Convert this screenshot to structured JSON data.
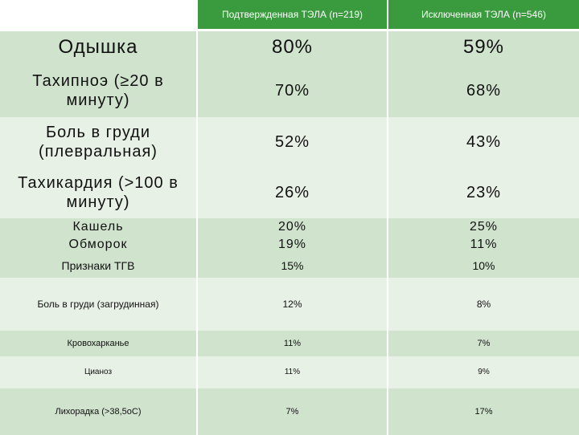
{
  "header": {
    "col1": "",
    "col2": "Подтвержденная ТЭЛА (n=219)",
    "col3": "Исключенная ТЭЛА (n=546)"
  },
  "rows": [
    {
      "label": "Одышка",
      "confirmed": "80%",
      "excluded": "59%"
    },
    {
      "label": "Тахипноэ (≥20 в минуту)",
      "confirmed": "70%",
      "excluded": "68%"
    },
    {
      "label": "Боль в груди (плевральная)",
      "confirmed": "52%",
      "excluded": "43%"
    },
    {
      "label": "Тахикардия (>100 в минуту)",
      "confirmed": "26%",
      "excluded": "23%"
    },
    {
      "label": "Кашель",
      "confirmed": "20%",
      "excluded": "25%"
    },
    {
      "label": "Обморок",
      "confirmed": "19%",
      "excluded": "11%"
    },
    {
      "label": "Признаки ТГВ",
      "confirmed": "15%",
      "excluded": "10%"
    },
    {
      "label": "Боль в груди (загрудинная)",
      "confirmed": "12%",
      "excluded": "8%"
    },
    {
      "label": "Кровохарканье",
      "confirmed": "11%",
      "excluded": "7%"
    },
    {
      "label": "Цианоз",
      "confirmed": "11%",
      "excluded": "9%"
    },
    {
      "label": "Лихорадка (>38,5оС)",
      "confirmed": "7%",
      "excluded": "17%"
    }
  ],
  "colors": {
    "header_bg": "#3a9a3e",
    "row_dark": "#cfe3cd",
    "row_light": "#e8f1e6"
  }
}
